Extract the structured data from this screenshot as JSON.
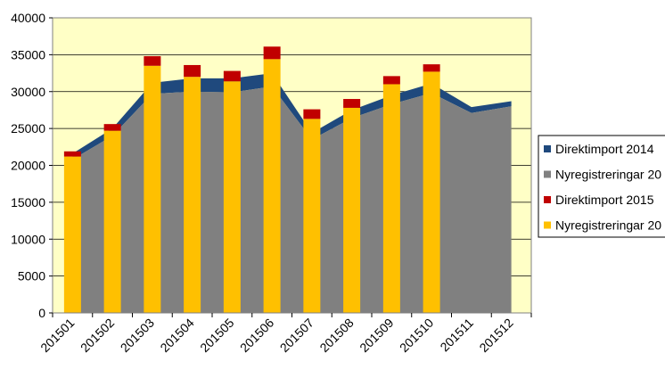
{
  "chart_data": {
    "type": "bar",
    "title": "",
    "xlabel": "",
    "ylabel": "",
    "ylim": [
      0,
      40000
    ],
    "yticks": [
      0,
      5000,
      10000,
      15000,
      20000,
      25000,
      30000,
      35000,
      40000
    ],
    "categories": [
      "201501",
      "201502",
      "201503",
      "201504",
      "201505",
      "201506",
      "201507",
      "201508",
      "201509",
      "201510",
      "201511",
      "201512"
    ],
    "grid": "horizontal",
    "legend_position": "right (clipped)",
    "plot_background": "#FFFFC6",
    "series": [
      {
        "name": "Direktimport 2014",
        "kind": "area-stacked",
        "color": "#1F497D",
        "values": [
          800,
          1000,
          1500,
          1800,
          1900,
          1800,
          900,
          1100,
          1200,
          1300,
          800,
          700
        ]
      },
      {
        "name": "Nyregistreringar 20",
        "kind": "area",
        "color": "#808080",
        "values": [
          20800,
          24000,
          29700,
          30000,
          29900,
          30700,
          23500,
          26400,
          28300,
          29800,
          27100,
          28000
        ]
      },
      {
        "name": "Direktimport 2015",
        "kind": "bar-stacked",
        "color": "#C00000",
        "values": [
          700,
          900,
          1300,
          1600,
          1400,
          1700,
          1300,
          1200,
          1100,
          1000,
          null,
          null
        ]
      },
      {
        "name": "Nyregistreringar 20",
        "kind": "bar",
        "color": "#FFC000",
        "values": [
          21200,
          24700,
          33500,
          32000,
          31400,
          34400,
          26300,
          27800,
          31000,
          32700,
          null,
          null
        ]
      }
    ]
  }
}
